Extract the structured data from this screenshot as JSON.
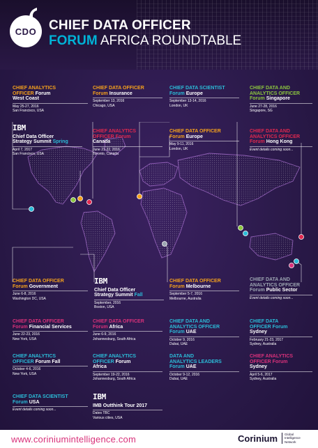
{
  "header": {
    "logo_text": "CDO",
    "title_line1": "CHIEF DATA OFFICER",
    "title_line2_accent": "FORUM",
    "title_line2_rest": " AFRICA ROUNDTABLE"
  },
  "events": {
    "e1": {
      "l1": "CHIEF ANALYTICS",
      "l2a": "OFFICER",
      "l2b": " Forum",
      "l3": "West Coast",
      "d1": "May 25-27, 2016",
      "d2": "San Francisco, USA"
    },
    "e2": {
      "l1": "CHIEF DATA OFFICER",
      "l2a": "Forum",
      "l2b": " Insurance",
      "d1": "September 13, 2016",
      "d2": "Chicago, USA"
    },
    "e3": {
      "l1": "CHIEF DATA SCIENTIST",
      "l2a": "Forum",
      "l2b": " Europe",
      "d1": "September 13-14, 2016",
      "d2": "London, UK"
    },
    "e4": {
      "l1": "CHIEF DATA AND",
      "l2": "ANALYTICS OFFICER",
      "l3a": "Forum",
      "l3b": " Singapore",
      "d1": "June 27-28, 2016",
      "d2": "Singapore, SG"
    },
    "e5": {
      "logo": "IBM",
      "l1": "Chief Data Officer",
      "l2a": "Strategy Summit",
      "l2b": " Spring",
      "d1": "April 7, 2017",
      "d2": "San Francisco, USA"
    },
    "e6": {
      "l1": "CHIEF ANALYTICS",
      "l2a": "OFFICER",
      "l2b": " Forum",
      "l3": "Canada",
      "d1": "June 21-22, 2016",
      "d2": "Toronto, Canada"
    },
    "e7": {
      "l1": "CHIEF DATA OFFICER",
      "l2a": "Forum",
      "l2b": " Europe",
      "d1": "May 9-11, 2016",
      "d2": "London, UK"
    },
    "e8": {
      "l1": "CHIEF DATA AND",
      "l2": "ANALYTICS OFFICER",
      "l3a": "Forum",
      "l3b": " Hong Kong",
      "d1": "Event details coming soon..."
    },
    "e9": {
      "l1": "CHIEF DATA OFFICER",
      "l2a": "Forum",
      "l2b": " Government",
      "d1": "June 6-8, 2016",
      "d2": "Washington DC, USA"
    },
    "e10": {
      "logo": "IBM",
      "l1": "Chief Data Officer",
      "l2a": "Strategy Summit",
      "l2b": " Fall",
      "d1": "September, 2016",
      "d2": "Boston, USA"
    },
    "e11": {
      "l1": "CHIEF DATA OFFICER",
      "l2a": "Forum",
      "l2b": " Melbourne",
      "d1": "September 5-7, 2016",
      "d2": "Melbourne, Australia"
    },
    "e12": {
      "l1": "CHIEF DATA AND",
      "l2": "ANALYTICS OFFICER",
      "l3a": "Forum",
      "l3b": " Public Sector",
      "d1": "Event details coming soon..."
    },
    "e13": {
      "l1": "CHIEF DATA OFFICER",
      "l2a": "Forum",
      "l2b": " Financial Services",
      "d1": "June 22-23, 2016",
      "d2": "New York, USA"
    },
    "e14": {
      "l1": "CHIEF DATA OFFICER",
      "l2a": "Forum",
      "l2b": " Africa",
      "d1": "June 6-9, 2016",
      "d2": "Johannesburg, South Africa"
    },
    "e15": {
      "l1": "CHIEF DATA AND",
      "l2": "ANALYTICS OFFICER",
      "l3a": "Forum",
      "l3b": " UAE",
      "d1": "October 9, 2016",
      "d2": "Dubai, UAE"
    },
    "e16": {
      "l1": "CHIEF DATA",
      "l2": "OFFICER Forum",
      "l3": "Sydney",
      "d1": "February 21-23, 2017",
      "d2": "Sydney, Australia"
    },
    "e17": {
      "l1": "CHIEF ANALYTICS",
      "l2a": "OFFICER",
      "l2b": " Forum Fall",
      "d1": "October 4-6, 2016",
      "d2": "New York, USA"
    },
    "e18": {
      "l1": "CHIEF ANALYTICS",
      "l2a": "OFFICER",
      "l2b": " Forum",
      "l3": "Africa",
      "d1": "September 19-22, 2016",
      "d2": "Johannesburg, South Africa"
    },
    "e19": {
      "l1": "DATA AND",
      "l2": "ANALYTICS LEADERS",
      "l3a": "Forum",
      "l3b": " UAE",
      "d1": "October 9-12, 2016",
      "d2": "Dubai, UAE"
    },
    "e20": {
      "l1": "CHIEF ANALYTICS",
      "l2a": "OFFICER",
      "l2b": " Forum",
      "l3": "Sydney",
      "d1": "April 5-6, 2017",
      "d2": "Sydney, Australia"
    },
    "e21": {
      "l1": "CHIEF DATA SCIENTIST",
      "l2a": "Forum",
      "l2b": " USA",
      "d1": "Event details coming soon..."
    },
    "e22": {
      "logo": "IBM",
      "l1": "IMB Outthink Tour 2017",
      "d1": "Dates TBC",
      "d2": "Various cities, USA"
    }
  },
  "footer": {
    "url": "www.coriniumintelligence.com",
    "brand": "Corinium",
    "brand_sub1": "Global",
    "brand_sub2": "Intelligence",
    "brand_sub3": "Network"
  },
  "colors": {
    "orange": "#f6a21c",
    "cyan": "#2bbcd8",
    "green": "#8cc63f",
    "red": "#e0284f",
    "pink": "#d9317a",
    "purple": "#2a1846"
  }
}
